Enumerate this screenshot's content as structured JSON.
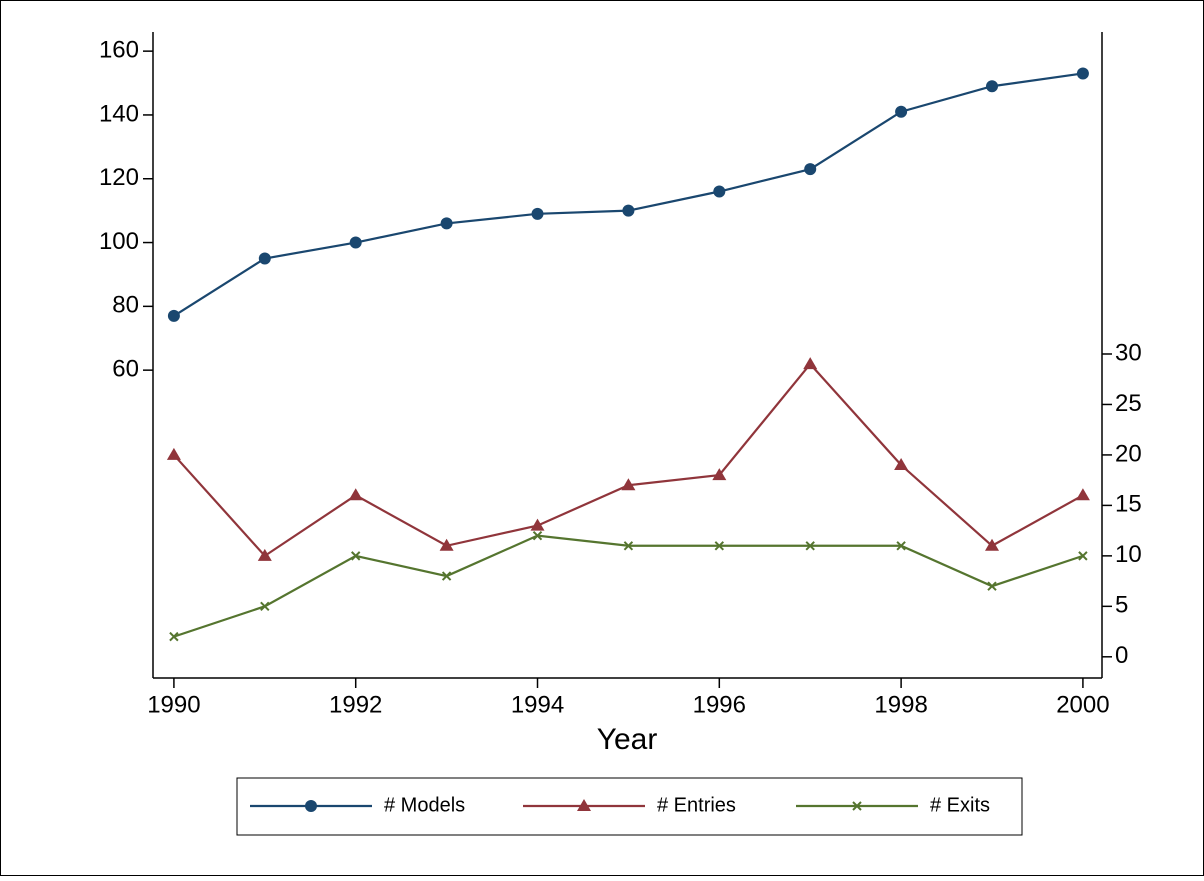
{
  "chart_data": {
    "type": "line",
    "x_label": "Year",
    "x": [
      1990,
      1991,
      1992,
      1993,
      1994,
      1995,
      1996,
      1997,
      1998,
      1999,
      2000
    ],
    "xlim": [
      1989.77,
      2000.21
    ],
    "xticks": [
      1990,
      1992,
      1994,
      1996,
      1998,
      2000
    ],
    "ylim": [
      -36.5,
      166
    ],
    "yticks": [
      60,
      80,
      100,
      120,
      140,
      160
    ],
    "y2lim": [
      -2.1,
      61.9
    ],
    "y2ticks": [
      0,
      5,
      10,
      15,
      20,
      25,
      30
    ],
    "series": [
      {
        "name": "# Models",
        "color": "#1a476f",
        "marker": "circle",
        "values": [
          77,
          95,
          100,
          106,
          109,
          110,
          116,
          123,
          141,
          149,
          153
        ]
      },
      {
        "name": "# Entries",
        "color": "#90353b",
        "marker": "triangle",
        "axis": "y2",
        "values": [
          20,
          10,
          16,
          11,
          13,
          17,
          18,
          29,
          19,
          11,
          16
        ]
      },
      {
        "name": "# Exits",
        "color": "#55752f",
        "marker": "x",
        "axis": "y2",
        "values": [
          2,
          5,
          10,
          8,
          12,
          11,
          11,
          11,
          11,
          7,
          10
        ]
      }
    ],
    "legend": "bottom"
  }
}
